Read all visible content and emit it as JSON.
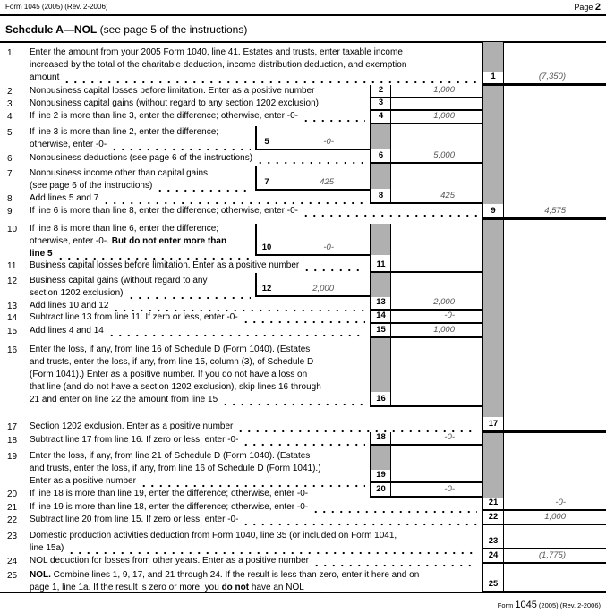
{
  "header": {
    "form_ref": "Form 1045 (2005) (Rev. 2-2006)",
    "page_label": "Page",
    "page_number": "2"
  },
  "schedule": {
    "title_bold": "Schedule A—NOL",
    "title_rest": " (see page 5 of the instructions)"
  },
  "lines": [
    {
      "num": "1",
      "rows": [
        "Enter the amount from your 2005 Form 1040, line 41. Estates and trusts, enter taxable income",
        "increased by the total of the charitable deduction, income distribution deduction, and exemption",
        "amount"
      ]
    },
    {
      "num": "2",
      "rows": [
        "Nonbusiness capital losses before limitation. Enter as a positive number"
      ]
    },
    {
      "num": "3",
      "rows": [
        "Nonbusiness capital gains (without regard to any section 1202 exclusion)"
      ]
    },
    {
      "num": "4",
      "rows": [
        "If line 2 is more than line 3, enter the difference; otherwise, enter -0-"
      ]
    },
    {
      "num": "5",
      "rows": [
        "If line 3 is more than line 2, enter the difference;",
        "otherwise, enter -0-"
      ]
    },
    {
      "num": "6",
      "rows": [
        "Nonbusiness deductions (see page 6 of the instructions)"
      ]
    },
    {
      "num": "7",
      "rows": [
        "Nonbusiness income other than capital gains",
        "(see page 6 of the instructions)"
      ]
    },
    {
      "num": "8",
      "rows": [
        "Add lines 5 and 7"
      ]
    },
    {
      "num": "9",
      "rows": [
        "If line 6 is more than line 8, enter the difference; otherwise, enter -0-"
      ]
    },
    {
      "num": "10",
      "rows": [
        "If line 8 is more than line 6, enter the difference;",
        [
          {
            "t": "otherwise, enter -0-. "
          },
          {
            "t": "But do not enter more than",
            "b": true
          }
        ],
        [
          {
            "t": "line 5",
            "b": true
          }
        ]
      ]
    },
    {
      "num": "11",
      "rows": [
        "Business capital losses before limitation. Enter as a positive number"
      ]
    },
    {
      "num": "12",
      "rows": [
        "Business capital gains (without regard to any",
        "section 1202 exclusion)"
      ]
    },
    {
      "num": "13",
      "rows": [
        "Add lines 10 and 12"
      ]
    },
    {
      "num": "14",
      "rows": [
        "Subtract line 13 from line 11. If zero or less, enter -0-"
      ]
    },
    {
      "num": "15",
      "rows": [
        "Add lines 4 and 14"
      ]
    },
    {
      "num": "16",
      "rows": [
        "Enter the loss, if any, from line 16 of Schedule D (Form 1040). (Estates",
        "and trusts, enter the loss, if any, from line 15, column (3), of Schedule D",
        "(Form 1041).) Enter as a positive number. If you do not have a loss on",
        "that line (and do not have a section 1202 exclusion), skip lines 16 through",
        "21 and enter on line 22 the amount from line 15"
      ]
    },
    {
      "num": "17",
      "rows": [
        "Section 1202 exclusion. Enter as a positive number"
      ]
    },
    {
      "num": "18",
      "rows": [
        "Subtract line 17 from line 16. If zero or less, enter -0-"
      ]
    },
    {
      "num": "19",
      "rows": [
        "Enter the loss, if any, from line 21 of Schedule D (Form 1040). (Estates",
        "and trusts, enter the loss, if any, from line 16 of Schedule D (Form 1041).)",
        "Enter as a positive number"
      ]
    },
    {
      "num": "20",
      "rows": [
        "If line 18 is more than line 19, enter the difference; otherwise, enter -0-"
      ]
    },
    {
      "num": "21",
      "rows": [
        "If line 19 is more than line 18, enter the difference; otherwise, enter -0-"
      ]
    },
    {
      "num": "22",
      "rows": [
        "Subtract line 20 from line 15. If zero or less, enter -0-"
      ]
    },
    {
      "num": "23",
      "rows": [
        "Domestic production activities deduction from Form 1040, line 35 (or included on Form 1041,",
        "line 15a)"
      ]
    },
    {
      "num": "24",
      "rows": [
        "NOL deduction for losses from other years. Enter as a positive number"
      ]
    },
    {
      "num": "25",
      "rows": [
        [
          {
            "t": "NOL.",
            "b": true
          },
          {
            "t": " Combine lines 1, 9, 17, and 21 through 24. If the result is less than zero, enter it here and on"
          }
        ],
        [
          {
            "t": "page 1, line 1a. If the result is zero or more, you "
          },
          {
            "t": "do not",
            "b": true
          },
          {
            "t": " have an NOL"
          }
        ]
      ]
    }
  ],
  "amounts": {
    "1": "(7,350)",
    "2": "1,000",
    "3": "",
    "4": "1,000",
    "5": "-0-",
    "6": "5,000",
    "7": "425",
    "8": "425",
    "9": "4,575",
    "10": "-0-",
    "11": "",
    "12": "2,000",
    "13": "2,000",
    "14": "-0-",
    "15": "1,000",
    "16": "",
    "17": "",
    "18": "-0-",
    "19": "",
    "20": "-0-",
    "21": "-0-",
    "22": "1,000",
    "23": "",
    "24": "(1,775)",
    "25": ""
  },
  "footer": {
    "form_label": "Form",
    "form_number": "1045",
    "form_rest": " (2005) (Rev. 2-2006)"
  },
  "colors": {
    "shade": "#b0b0b0",
    "value_text": "#555555"
  }
}
